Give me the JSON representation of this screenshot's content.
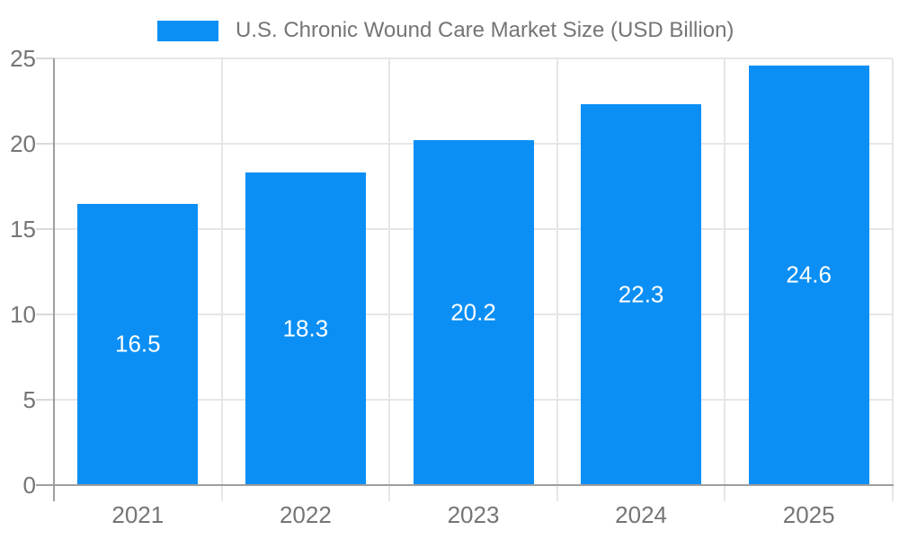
{
  "legend": {
    "label": "U.S. Chronic Wound Care Market Size (USD Billion)"
  },
  "chart_data": {
    "type": "bar",
    "title": "U.S. Chronic Wound Care Market Size (USD Billion)",
    "categories": [
      "2021",
      "2022",
      "2023",
      "2024",
      "2025"
    ],
    "values": [
      16.5,
      18.3,
      20.2,
      22.3,
      24.6
    ],
    "value_labels": [
      "16.5",
      "18.3",
      "20.2",
      "22.3",
      "24.6"
    ],
    "xlabel": "",
    "ylabel": "",
    "ylim": [
      0,
      25
    ],
    "yticks": [
      0,
      5,
      10,
      15,
      20,
      25
    ],
    "grid": true,
    "legend_position": "top",
    "colors": {
      "bar": "#0b8ff5",
      "value_label": "#ffffff",
      "axis_text": "#757575",
      "gridline": "#e6e6e6",
      "axis_line": "#9e9e9e",
      "tick": "#d9d9d9",
      "background": "#ffffff"
    }
  }
}
